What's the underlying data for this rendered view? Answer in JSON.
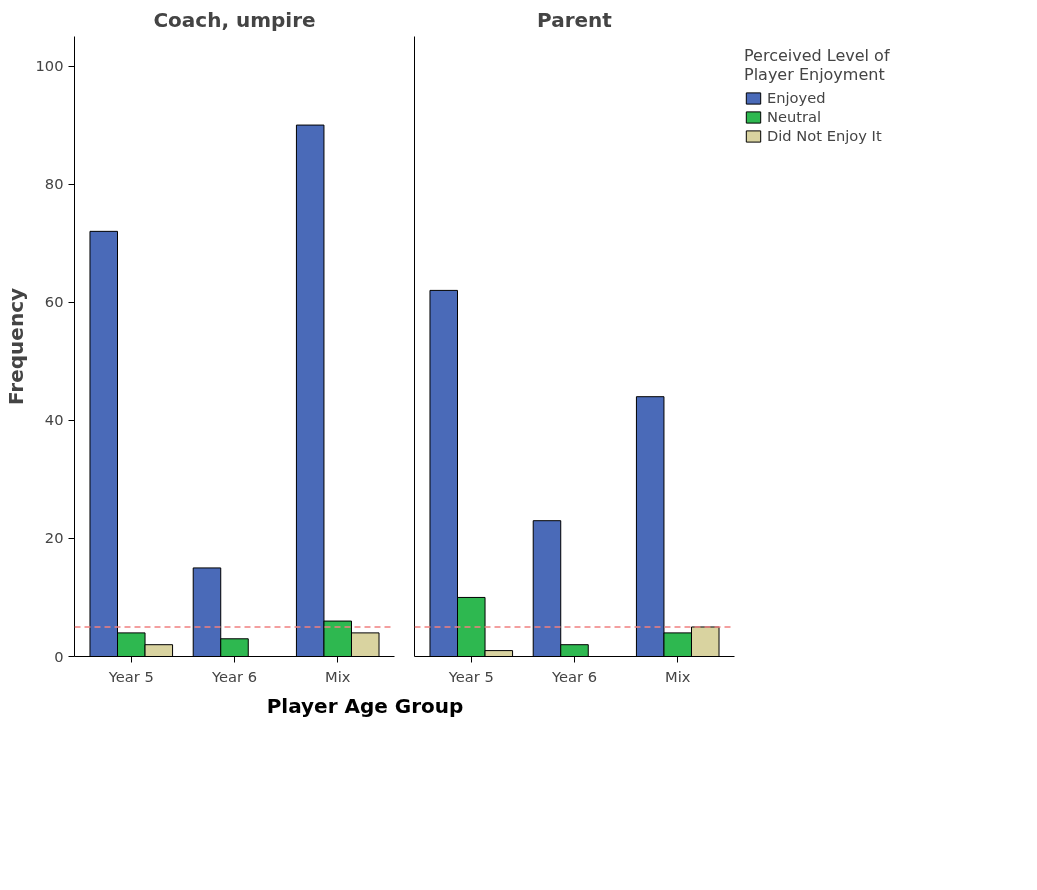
{
  "chart_data": [
    {
      "type": "bar",
      "title": "Coach, umpire",
      "xlabel": "Player Age Group",
      "ylabel": "Frequency",
      "legend_title": "Perceived Level of Player Enjoyment",
      "categories": [
        "Year 5",
        "Year 6",
        "Mix"
      ],
      "ylim": [
        0,
        105
      ],
      "yticks": [
        0,
        20,
        40,
        60,
        80,
        100
      ],
      "grid": false,
      "legend": "right",
      "series": [
        {
          "name": "Enjoyed",
          "color": "#4a6ab8",
          "values": [
            72,
            15,
            90
          ]
        },
        {
          "name": "Neutral",
          "color": "#2eb850",
          "values": [
            4,
            3,
            6
          ]
        },
        {
          "name": "Did Not Enjoy It",
          "color": "#d9d3a0",
          "values": [
            2,
            0,
            4
          ]
        }
      ],
      "ref_lines": [
        {
          "axis": "y",
          "value": 5,
          "label": null,
          "color": "#f08080",
          "line_style": "dashed"
        }
      ]
    },
    {
      "type": "bar",
      "title": "Parent",
      "categories": [
        "Year 5",
        "Year 6",
        "Mix"
      ],
      "ylim": [
        0,
        105
      ],
      "yticks": [
        0,
        20,
        40,
        60,
        80,
        100
      ],
      "tick_labels": "x",
      "grid": false,
      "series": [
        {
          "color": "#4a6ab8",
          "values": [
            62,
            23,
            44
          ]
        },
        {
          "color": "#2eb850",
          "values": [
            10,
            2,
            4
          ]
        },
        {
          "color": "#d9d3a0",
          "values": [
            1,
            0,
            5
          ]
        }
      ],
      "ref_lines": [
        {
          "axis": "y",
          "value": 5,
          "label": null,
          "color": "#f08080",
          "line_style": "dashed"
        }
      ]
    }
  ]
}
